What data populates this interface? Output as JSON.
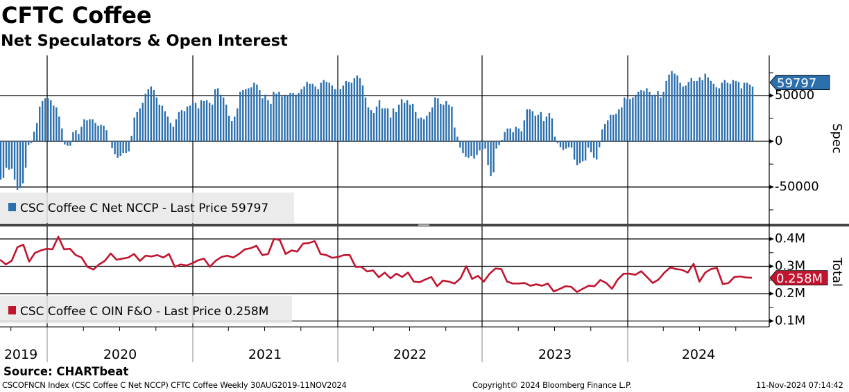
{
  "title": "CFTC Coffee",
  "subtitle": "Net Speculators & Open Interest",
  "source": "Source: CHARTbeat",
  "footer": {
    "left": "CSCOFNCN Index (CSC Coffee C Net NCCP) CFTC Coffee  Weekly 30AUG2019-11NOV2024",
    "center": "Copyright© 2024 Bloomberg Finance L.P.",
    "right": "11-Nov-2024 07:14:42"
  },
  "chart_data": [
    {
      "type": "bar",
      "frequency": "weekly",
      "date_range": [
        "2019-08-30",
        "2024-11-11"
      ],
      "axis_label": "Spec",
      "y_ticks": [
        "50000",
        "0",
        "-50000"
      ],
      "y_tick_values": [
        50000,
        0,
        -50000
      ],
      "ylim": [
        -92000,
        94000
      ],
      "grid": true,
      "color": "#2c6fad",
      "legend": "CSC Coffee C Net NCCP - Last Price 59797",
      "legend_position": "bottom-left",
      "last_value_label": "59797",
      "values": [
        -42000,
        -40000,
        -29000,
        -31000,
        -30000,
        -42000,
        -53000,
        -51000,
        -46000,
        -29000,
        -4000,
        -2000,
        10600,
        20000,
        38000,
        44000,
        47000,
        47000,
        45000,
        39000,
        37000,
        27000,
        14000,
        -3500,
        -5000,
        -5000,
        10000,
        12000,
        8000,
        16000,
        24000,
        23000,
        24000,
        24000,
        20000,
        17000,
        18000,
        17000,
        12000,
        500,
        -7500,
        -14000,
        -18000,
        -16000,
        -13000,
        -13000,
        -11000,
        6000,
        26000,
        32000,
        36000,
        42000,
        52000,
        57000,
        60000,
        56000,
        48000,
        40000,
        39000,
        33000,
        27000,
        20000,
        16000,
        24000,
        32000,
        34000,
        33000,
        38000,
        39000,
        42000,
        42000,
        36000,
        45000,
        44000,
        45000,
        42000,
        40000,
        57000,
        58000,
        51000,
        48000,
        40000,
        28000,
        22000,
        27000,
        36000,
        54000,
        56000,
        57000,
        58000,
        59000,
        64000,
        62000,
        56000,
        47000,
        51000,
        45000,
        41000,
        54000,
        52000,
        54000,
        49000,
        51000,
        50000,
        53000,
        53000,
        51000,
        53000,
        57000,
        60000,
        65000,
        63000,
        63000,
        60000,
        57000,
        64000,
        67000,
        65000,
        64000,
        61000,
        57000,
        57000,
        57000,
        61000,
        66000,
        65000,
        64000,
        69000,
        72000,
        69000,
        61000,
        48000,
        37000,
        34000,
        31000,
        38000,
        45000,
        36000,
        36000,
        36000,
        26000,
        36000,
        32000,
        40000,
        46000,
        42000,
        45000,
        40000,
        41000,
        32000,
        25000,
        26000,
        24000,
        28000,
        32000,
        37000,
        48000,
        47000,
        41000,
        40000,
        44000,
        40000,
        38000,
        15000,
        5000,
        -7000,
        -13000,
        -17000,
        -18000,
        -16000,
        -19000,
        -15000,
        -10000,
        -9000,
        -8000,
        -26000,
        -38000,
        -34000,
        -8000,
        -4000,
        1500,
        10000,
        14000,
        14000,
        10000,
        16000,
        14000,
        11000,
        23000,
        35000,
        35000,
        33000,
        28000,
        29000,
        32000,
        22000,
        27000,
        31000,
        25000,
        5000,
        -2000,
        -6500,
        -9500,
        -8000,
        -6500,
        -7000,
        -20000,
        -26000,
        -24000,
        -22000,
        -21000,
        -7000,
        -12000,
        -18000,
        -20000,
        -6500,
        13000,
        19000,
        23000,
        29000,
        29000,
        30000,
        35000,
        37000,
        48000,
        46000,
        46000,
        48000,
        51000,
        54000,
        56000,
        55000,
        58000,
        54000,
        50000,
        51000,
        55000,
        48000,
        54000,
        66000,
        73000,
        77000,
        74000,
        72000,
        64000,
        60000,
        61000,
        65000,
        69000,
        66000,
        66000,
        70000,
        67000,
        74000,
        70000,
        66000,
        63000,
        59000,
        58000,
        64000,
        67000,
        64000,
        63000,
        67000,
        66000,
        65000,
        58000,
        64000,
        64000,
        62000,
        59797
      ]
    },
    {
      "type": "line",
      "frequency": "approx. bi-weekly samples",
      "date_range": [
        "2019-08-30",
        "2024-11-11"
      ],
      "axis_label": "Total",
      "y_ticks": [
        "0.4M",
        "0.3M",
        "0.2M",
        "0.1M"
      ],
      "y_tick_values": [
        0.4,
        0.3,
        0.2,
        0.1
      ],
      "unit": "M",
      "ylim": [
        0.071,
        0.443
      ],
      "grid": true,
      "color": "#c0142f",
      "legend": "CSC Coffee C OIN F&O - Last Price 0.258M",
      "legend_position": "bottom-left",
      "last_value_label": "0.258M",
      "values": [
        0.324,
        0.307,
        0.32,
        0.37,
        0.379,
        0.317,
        0.349,
        0.358,
        0.364,
        0.362,
        0.408,
        0.362,
        0.364,
        0.341,
        0.332,
        0.298,
        0.288,
        0.307,
        0.32,
        0.347,
        0.324,
        0.328,
        0.332,
        0.345,
        0.32,
        0.339,
        0.336,
        0.341,
        0.332,
        0.345,
        0.298,
        0.307,
        0.303,
        0.311,
        0.322,
        0.328,
        0.298,
        0.32,
        0.334,
        0.339,
        0.332,
        0.345,
        0.362,
        0.366,
        0.375,
        0.341,
        0.345,
        0.4,
        0.396,
        0.345,
        0.358,
        0.354,
        0.383,
        0.385,
        0.392,
        0.345,
        0.341,
        0.331,
        0.334,
        0.341,
        0.341,
        0.298,
        0.298,
        0.281,
        0.285,
        0.26,
        0.277,
        0.256,
        0.273,
        0.261,
        0.277,
        0.244,
        0.242,
        0.252,
        0.261,
        0.227,
        0.248,
        0.244,
        0.237,
        0.256,
        0.3,
        0.254,
        0.265,
        0.244,
        0.273,
        0.292,
        0.29,
        0.244,
        0.237,
        0.237,
        0.239,
        0.229,
        0.234,
        0.229,
        0.237,
        0.208,
        0.217,
        0.227,
        0.225,
        0.206,
        0.218,
        0.229,
        0.227,
        0.25,
        0.239,
        0.218,
        0.252,
        0.273,
        0.273,
        0.269,
        0.282,
        0.261,
        0.239,
        0.252,
        0.277,
        0.296,
        0.29,
        0.287,
        0.277,
        0.309,
        0.244,
        0.277,
        0.29,
        0.294,
        0.235,
        0.239,
        0.261,
        0.263,
        0.259,
        0.258
      ]
    }
  ],
  "x_axis": {
    "years": [
      "2019",
      "2020",
      "2021",
      "2022",
      "2023",
      "2024"
    ]
  }
}
